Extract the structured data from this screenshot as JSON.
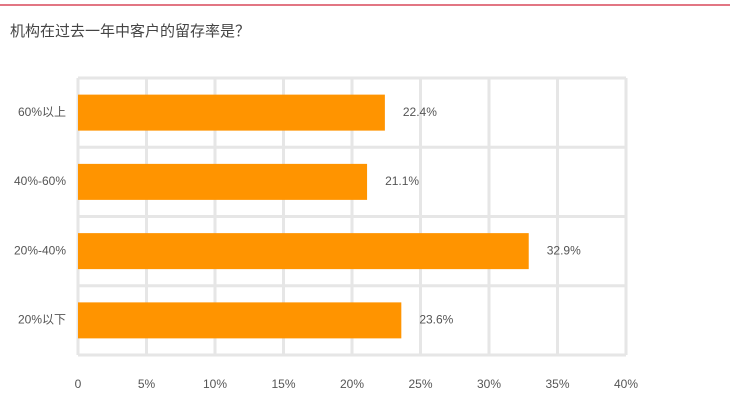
{
  "chart_data": {
    "type": "bar",
    "orientation": "horizontal",
    "title": "机构在过去一年中客户的留存率是？",
    "categories": [
      "60%以上",
      "40%-60%",
      "20%-40%",
      "20%以下"
    ],
    "values": [
      22.4,
      21.1,
      32.9,
      23.6
    ],
    "value_labels": [
      "22.4%",
      "21.1%",
      "32.9%",
      "23.6%"
    ],
    "color": "#ff9400",
    "xlim": [
      0,
      40
    ],
    "xticks": [
      0,
      {
        "value": 5,
        "label": "5%"
      },
      {
        "value": 10,
        "label": "10%"
      },
      {
        "value": 15,
        "label": "15%"
      },
      {
        "value": 20,
        "label": "20%"
      },
      {
        "value": 25,
        "label": "25%"
      },
      {
        "value": 30,
        "label": "30%"
      },
      {
        "value": 35,
        "label": "35%"
      },
      {
        "value": 40,
        "label": "40%"
      }
    ],
    "grid": true
  }
}
